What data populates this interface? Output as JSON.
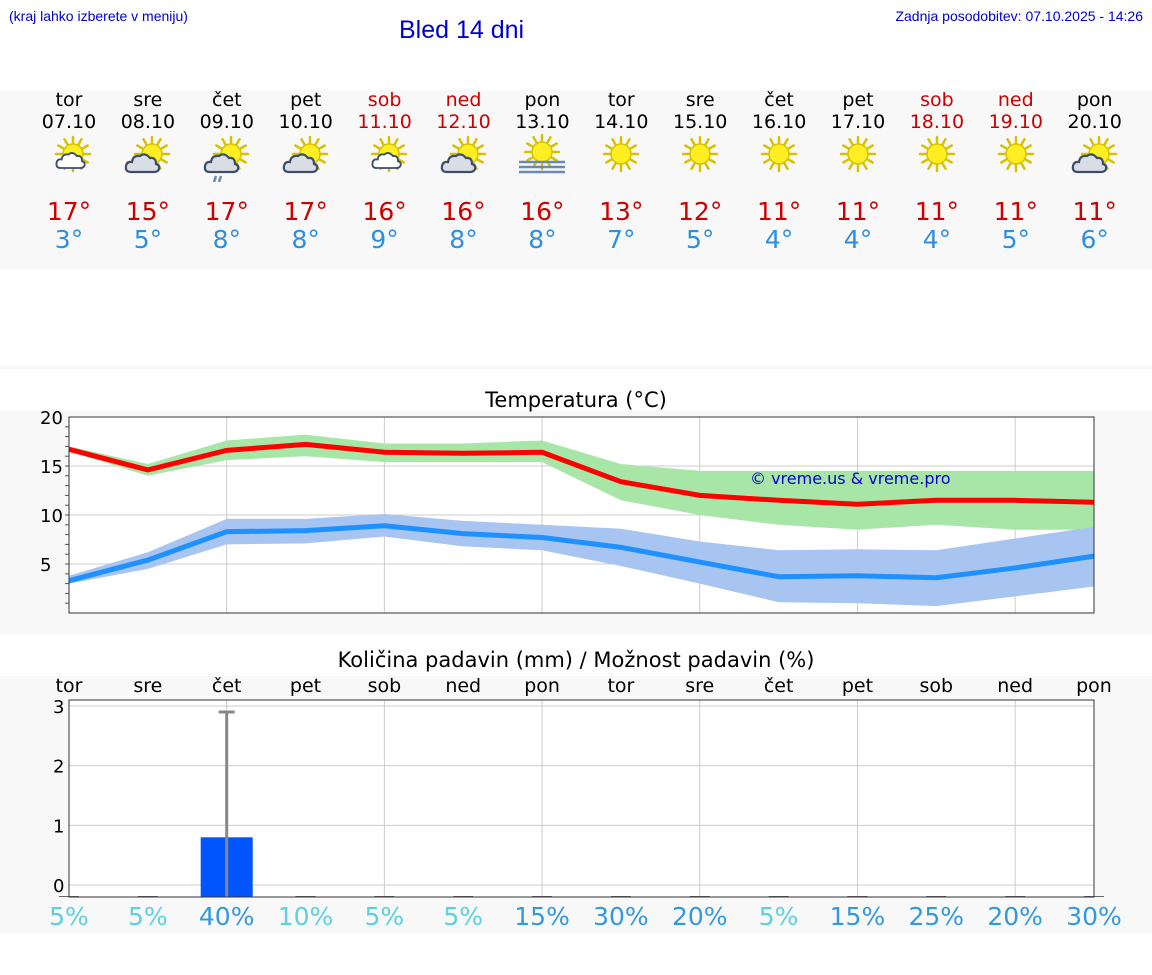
{
  "header": {
    "left_note": "(kraj lahko izberete v meniju)",
    "title": "Bled 14 dni",
    "updated": "Zadnja posodobitev: 07.10.2025 - 14:26"
  },
  "colors": {
    "weekday": "#000000",
    "weekend": "#cc0000",
    "tmax": "#cc0000",
    "tmin": "#2f8fdf",
    "max_band": "#a8e6a8",
    "min_band": "#a8c4f0",
    "max_line": "#ff0000",
    "min_line": "#1e90ff",
    "rain_bar": "#0055ff",
    "pct_low": "#5cd0e0",
    "pct_high": "#3399dd"
  },
  "days": [
    {
      "name": "tor",
      "date": "07.10",
      "weekend": false,
      "icon": "partly-cloudy-icon",
      "tmax": "17°",
      "tmin": "3°"
    },
    {
      "name": "sre",
      "date": "08.10",
      "weekend": false,
      "icon": "cloudy-sun-icon",
      "tmax": "15°",
      "tmin": "5°"
    },
    {
      "name": "čet",
      "date": "09.10",
      "weekend": false,
      "icon": "cloud-rain-sun-icon",
      "tmax": "17°",
      "tmin": "8°"
    },
    {
      "name": "pet",
      "date": "10.10",
      "weekend": false,
      "icon": "cloudy-sun-icon",
      "tmax": "17°",
      "tmin": "8°"
    },
    {
      "name": "sob",
      "date": "11.10",
      "weekend": true,
      "icon": "partly-cloudy-icon",
      "tmax": "16°",
      "tmin": "9°"
    },
    {
      "name": "ned",
      "date": "12.10",
      "weekend": true,
      "icon": "cloudy-sun-icon",
      "tmax": "16°",
      "tmin": "8°"
    },
    {
      "name": "pon",
      "date": "13.10",
      "weekend": false,
      "icon": "fog-sun-icon",
      "tmax": "16°",
      "tmin": "8°"
    },
    {
      "name": "tor",
      "date": "14.10",
      "weekend": false,
      "icon": "sun-icon",
      "tmax": "13°",
      "tmin": "7°"
    },
    {
      "name": "sre",
      "date": "15.10",
      "weekend": false,
      "icon": "sun-icon",
      "tmax": "12°",
      "tmin": "5°"
    },
    {
      "name": "čet",
      "date": "16.10",
      "weekend": false,
      "icon": "sun-icon",
      "tmax": "11°",
      "tmin": "4°"
    },
    {
      "name": "pet",
      "date": "17.10",
      "weekend": false,
      "icon": "sun-icon",
      "tmax": "11°",
      "tmin": "4°"
    },
    {
      "name": "sob",
      "date": "18.10",
      "weekend": true,
      "icon": "sun-icon",
      "tmax": "11°",
      "tmin": "4°"
    },
    {
      "name": "ned",
      "date": "19.10",
      "weekend": true,
      "icon": "sun-icon",
      "tmax": "11°",
      "tmin": "5°"
    },
    {
      "name": "pon",
      "date": "20.10",
      "weekend": false,
      "icon": "cloudy-sun-icon",
      "tmax": "11°",
      "tmin": "6°"
    }
  ],
  "chart_data": [
    {
      "type": "line",
      "title": "Temperatura (°C)",
      "watermark": "© vreme.us & vreme.pro",
      "ylim": [
        0,
        20
      ],
      "yticks": [
        "5",
        "10",
        "15",
        "20"
      ],
      "ytick_values": [
        5,
        10,
        15,
        20
      ],
      "grid": true,
      "series": [
        {
          "name": "max",
          "values": [
            16.7,
            14.6,
            16.6,
            17.2,
            16.4,
            16.3,
            16.4,
            13.4,
            12.0,
            11.5,
            11.1,
            11.5,
            11.5,
            11.3
          ]
        },
        {
          "name": "min",
          "values": [
            3.3,
            5.4,
            8.3,
            8.4,
            8.9,
            8.1,
            7.7,
            6.7,
            5.2,
            3.7,
            3.8,
            3.6,
            4.6,
            5.8
          ]
        }
      ],
      "bands": [
        {
          "name": "max_range",
          "lower": [
            16.5,
            14.0,
            15.6,
            16.0,
            15.4,
            15.4,
            15.4,
            11.5,
            10.0,
            9.0,
            8.5,
            9.0,
            8.5,
            8.5
          ],
          "upper": [
            17.0,
            15.2,
            17.6,
            18.2,
            17.3,
            17.3,
            17.6,
            15.2,
            14.5,
            14.5,
            14.5,
            14.5,
            14.5,
            14.5
          ]
        },
        {
          "name": "min_range",
          "lower": [
            3.0,
            4.5,
            7.0,
            7.1,
            7.8,
            6.8,
            6.4,
            4.8,
            3.0,
            1.1,
            1.0,
            0.7,
            1.7,
            2.7
          ],
          "upper": [
            3.8,
            6.2,
            9.6,
            9.6,
            10.1,
            9.4,
            9.0,
            8.6,
            7.3,
            6.4,
            6.5,
            6.4,
            7.6,
            8.8
          ]
        }
      ]
    },
    {
      "type": "bar",
      "title": "Količina padavin (mm) / Možnost padavin (%)",
      "categories": [
        "tor",
        "sre",
        "čet",
        "pet",
        "sob",
        "ned",
        "pon",
        "tor",
        "sre",
        "čet",
        "pet",
        "sob",
        "ned",
        "pon"
      ],
      "values": [
        0,
        0,
        0.8,
        0,
        0,
        0,
        0,
        0,
        0,
        0,
        0,
        0,
        0,
        0
      ],
      "error_max": [
        0,
        0,
        2.9,
        0,
        0,
        0,
        0,
        0,
        0,
        0,
        0,
        0,
        0,
        0
      ],
      "ylim": [
        -0.2,
        3.1
      ],
      "yticks": [
        "0",
        "1",
        "2",
        "3"
      ],
      "ytick_values": [
        0,
        1,
        2,
        3
      ],
      "probability": [
        "5%",
        "5%",
        "40%",
        "10%",
        "5%",
        "5%",
        "15%",
        "30%",
        "20%",
        "5%",
        "15%",
        "25%",
        "20%",
        "30%"
      ],
      "probability_values": [
        5,
        5,
        40,
        10,
        5,
        5,
        15,
        30,
        20,
        5,
        15,
        25,
        20,
        30
      ]
    }
  ]
}
